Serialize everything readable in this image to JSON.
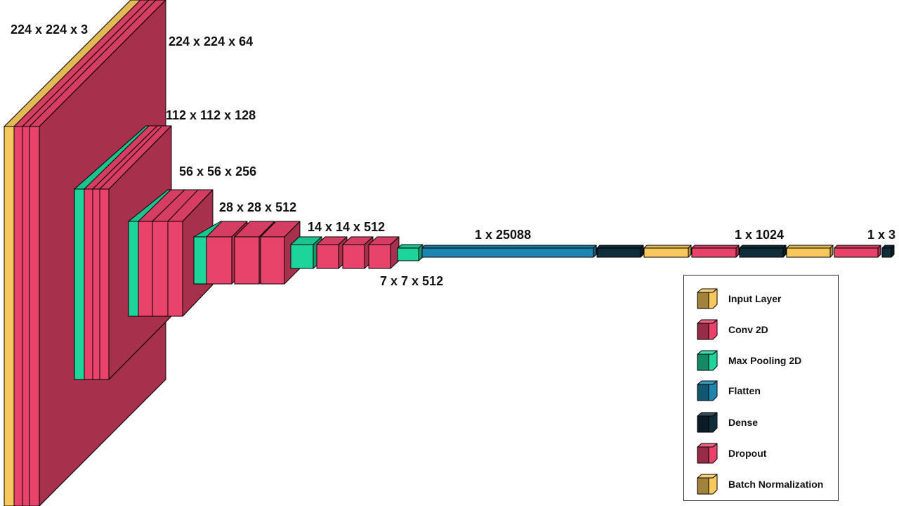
{
  "colors": {
    "input": "#f7c95d",
    "conv": "#e8436b",
    "pool": "#1dd49a",
    "flatten": "#1c86b0",
    "dense": "#0f2d3b",
    "dropout": "#e8436b",
    "batchnorm": "#f7c95d"
  },
  "labels": {
    "input_dim": "224 x 224 x 3",
    "block1_dim": "224 x 224 x 64",
    "block2_dim": "112 x 112 x 128",
    "block3_dim": "56 x 56 x 256",
    "block4_dim": "28 x 28 x 512",
    "block5_dim": "14 x 14 x 512",
    "pool5_dim": "7 x 7 x 512",
    "flatten_dim": "1 x 25088",
    "dense_dim": "1 x 1024",
    "output_dim": "1 x 3"
  },
  "legend": [
    {
      "label": "Input Layer",
      "color": "#f7c95d",
      "icon": "input-layer-icon"
    },
    {
      "label": "Conv 2D",
      "color": "#e8436b",
      "icon": "conv-2d-icon"
    },
    {
      "label": "Max Pooling 2D",
      "color": "#1dd49a",
      "icon": "max-pooling-2d-icon"
    },
    {
      "label": "Flatten",
      "color": "#1c86b0",
      "icon": "flatten-icon"
    },
    {
      "label": "Dense",
      "color": "#0f2d3b",
      "icon": "dense-icon"
    },
    {
      "label": "Dropout",
      "color": "#e8436b",
      "icon": "dropout-icon"
    },
    {
      "label": "Batch Normalization",
      "color": "#f7c95d",
      "icon": "batch-normalization-icon"
    }
  ]
}
